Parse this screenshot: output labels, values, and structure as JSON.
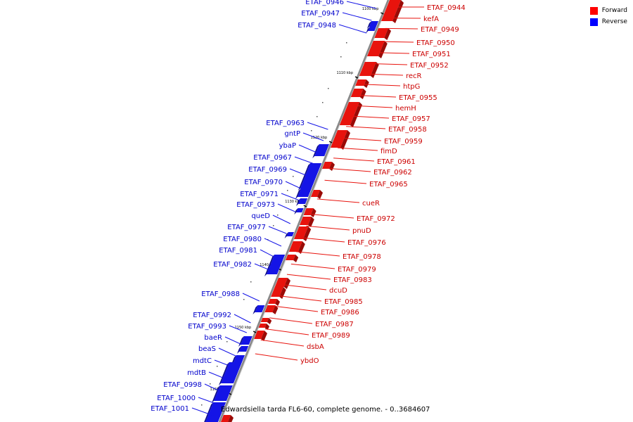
{
  "colors": {
    "forward": "#e8130d",
    "reverse": "#1414e6",
    "backbone": "#888888"
  },
  "legend": [
    {
      "label": "Forward",
      "color": "#ff0000"
    },
    {
      "label": "Reverse",
      "color": "#0000ff"
    }
  ],
  "caption": "Edwardsiella tarda FL6-60, complete genome. - 0..3684607",
  "ticks": [
    "1100 kbp",
    "1110 kbp",
    "1120 kbp",
    "1130 kbp",
    "1140 kbp",
    "1150 kbp",
    "1160 kbp"
  ],
  "forward_genes": [
    "ETAF_0944",
    "kefA",
    "ETAF_0949",
    "ETAF_0950",
    "ETAF_0951",
    "ETAF_0952",
    "recR",
    "htpG",
    "ETAF_0955",
    "hemH",
    "ETAF_0957",
    "ETAF_0958",
    "ETAF_0959",
    "fimD",
    "ETAF_0961",
    "ETAF_0962",
    "ETAF_0965",
    "cueR",
    "ETAF_0972",
    "pnuD",
    "ETAF_0976",
    "ETAF_0978",
    "ETAF_0979",
    "ETAF_0983",
    "dcuD",
    "ETAF_0985",
    "ETAF_0986",
    "ETAF_0987",
    "ETAF_0989",
    "dsbA",
    "ybdO"
  ],
  "reverse_genes": [
    "ETAF_0946",
    "ETAF_0947",
    "ETAF_0948",
    "ETAF_0963",
    "gntP",
    "ybaP",
    "ETAF_0967",
    "ETAF_0969",
    "ETAF_0970",
    "ETAF_0971",
    "ETAF_0973",
    "queD",
    "ETAF_0977",
    "ETAF_0980",
    "ETAF_0981",
    "ETAF_0982",
    "ETAF_0988",
    "ETAF_0992",
    "ETAF_0993",
    "baeR",
    "beaS",
    "mdtC",
    "mdtB",
    "ETAF_0998",
    "ETAF_1000",
    "ETAF_1001"
  ]
}
